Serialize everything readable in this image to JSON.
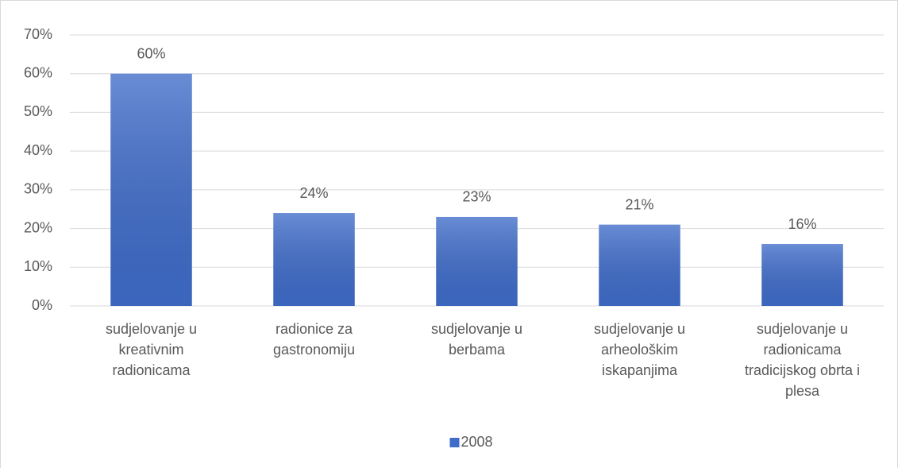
{
  "chart_data": {
    "type": "bar",
    "categories": [
      "sudjelovanje u kreativnim radionicama",
      "radionice za gastronomiju",
      "sudjelovanje u berbama",
      "sudjelovanje u arheološkim iskapanjima",
      "sudjelovanje u radionicama tradicijskog obrta i plesa"
    ],
    "series": [
      {
        "name": "2008",
        "color": "#3f6cc9",
        "values": [
          60,
          24,
          23,
          21,
          16
        ],
        "value_labels": [
          "60%",
          "24%",
          "23%",
          "21%",
          "16%"
        ]
      }
    ],
    "ylim": [
      0,
      70
    ],
    "yticks": [
      {
        "value": 0,
        "label": "0%"
      },
      {
        "value": 10,
        "label": "10%"
      },
      {
        "value": 20,
        "label": "20%"
      },
      {
        "value": 30,
        "label": "30%"
      },
      {
        "value": 40,
        "label": "40%"
      },
      {
        "value": 50,
        "label": "50%"
      },
      {
        "value": 60,
        "label": "60%"
      },
      {
        "value": 70,
        "label": "70%"
      }
    ],
    "grid": true,
    "legend": "bottom"
  }
}
